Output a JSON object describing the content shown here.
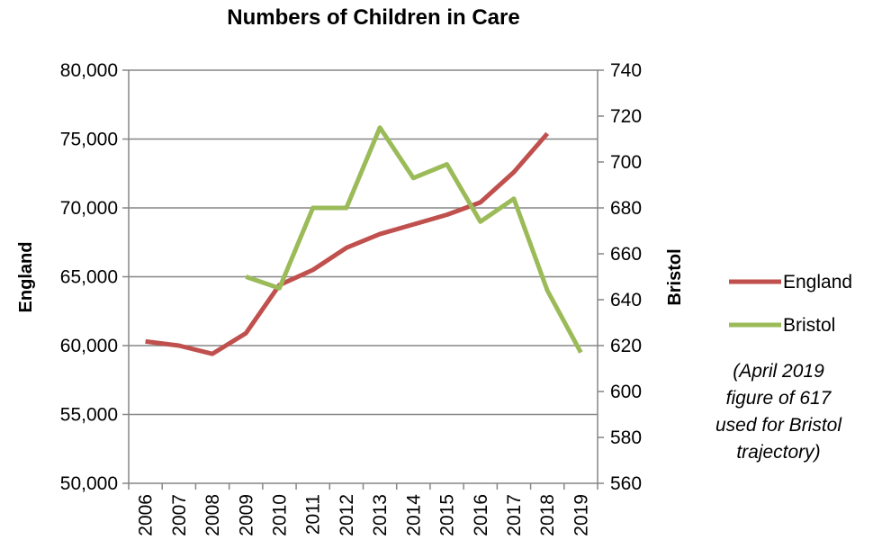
{
  "chart_data": {
    "type": "line",
    "title": "Numbers of Children in Care",
    "categories": [
      "2006",
      "2007",
      "2008",
      "2009",
      "2010",
      "2011",
      "2012",
      "2013",
      "2014",
      "2015",
      "2016",
      "2017",
      "2018",
      "2019"
    ],
    "y_left": {
      "label": "England",
      "lim": [
        50000,
        80000
      ],
      "ticks": [
        50000,
        55000,
        60000,
        65000,
        70000,
        75000,
        80000
      ],
      "tick_labels": [
        "50,000",
        "55,000",
        "60,000",
        "65,000",
        "70,000",
        "75,000",
        "80,000"
      ]
    },
    "y_right": {
      "label": "Bristol",
      "lim": [
        560,
        740
      ],
      "ticks": [
        560,
        580,
        600,
        620,
        640,
        660,
        680,
        700,
        720,
        740
      ],
      "tick_labels": [
        "560",
        "580",
        "600",
        "620",
        "640",
        "660",
        "680",
        "700",
        "720",
        "740"
      ]
    },
    "grid": true,
    "legend_position": "right",
    "series": [
      {
        "name": "England",
        "axis": "left",
        "color": "#c0504d",
        "values": [
          60300,
          60000,
          59400,
          60900,
          64400,
          65500,
          67100,
          68100,
          68800,
          69500,
          70400,
          72600,
          75400,
          null
        ]
      },
      {
        "name": "Bristol",
        "axis": "right",
        "color": "#9bbb59",
        "values": [
          null,
          null,
          null,
          650,
          645,
          680,
          680,
          715,
          693,
          699,
          674,
          684,
          644,
          617
        ]
      }
    ],
    "annotation": [
      "(April 2019",
      "figure of 617",
      "used for Bristol",
      "trajectory)"
    ]
  }
}
